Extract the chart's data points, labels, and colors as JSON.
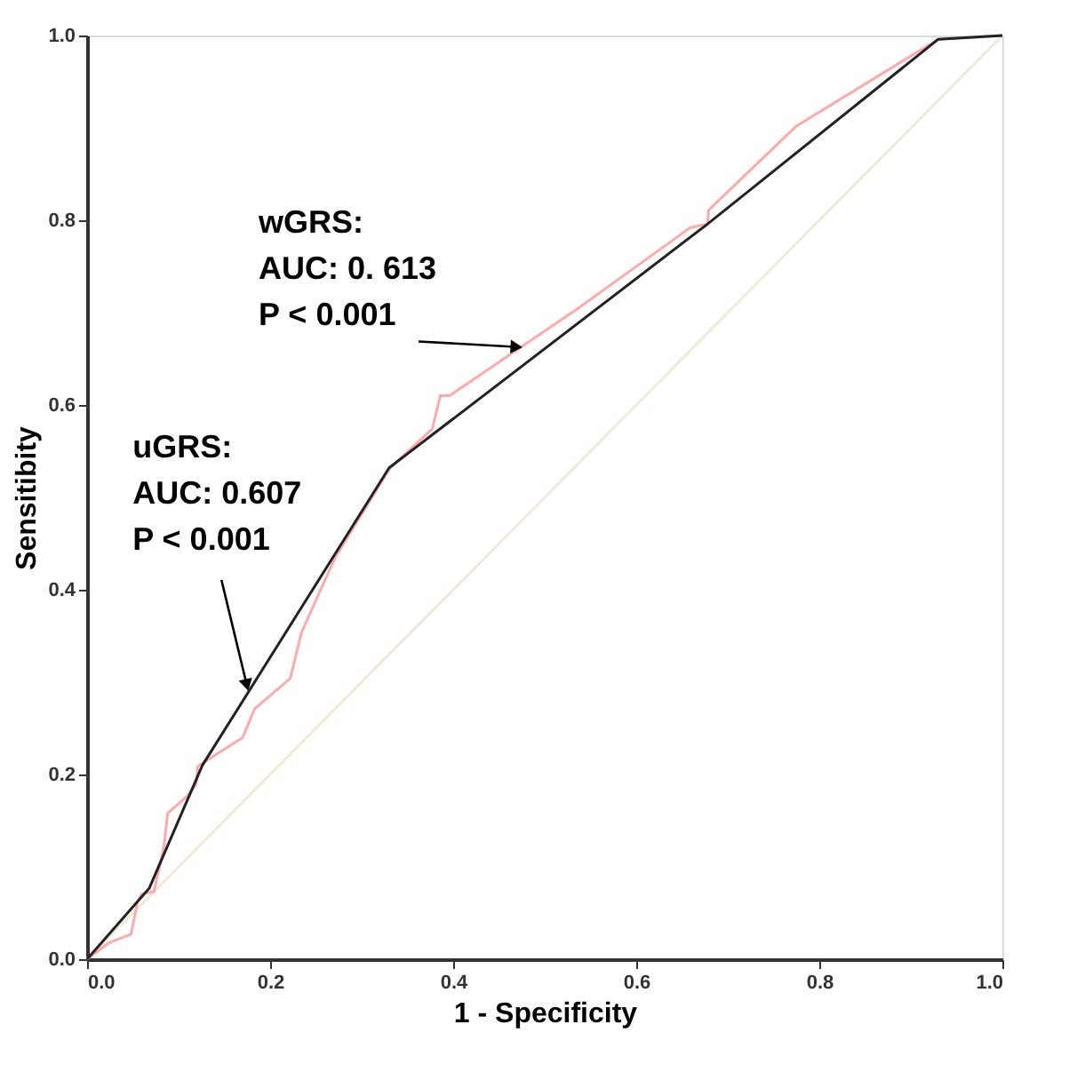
{
  "chart_data": {
    "type": "line",
    "xlabel": "1 - Specificity",
    "ylabel": "Sensitibity",
    "xlim": [
      0,
      1
    ],
    "ylim": [
      0,
      1
    ],
    "xticks": [
      {
        "value": 0,
        "label": "0.0"
      },
      {
        "value": 0.2,
        "label": "0.2"
      },
      {
        "value": 0.4,
        "label": "0.4"
      },
      {
        "value": 0.6,
        "label": "0.6"
      },
      {
        "value": 0.8,
        "label": "0.8"
      },
      {
        "value": 1,
        "label": "1.0"
      }
    ],
    "yticks": [
      {
        "value": 0,
        "label": "0.0"
      },
      {
        "value": 0.2,
        "label": "0.2"
      },
      {
        "value": 0.4,
        "label": "0.4"
      },
      {
        "value": 0.6,
        "label": "0.6"
      },
      {
        "value": 0.8,
        "label": "0.8"
      },
      {
        "value": 1,
        "label": "1.0"
      }
    ],
    "grid": false,
    "marker": "none",
    "line_style": "solid",
    "series": [
      {
        "color": "#f0ead6",
        "x": [
          0,
          1
        ],
        "values": [
          0,
          1
        ]
      },
      {
        "color": "#ffaaaa",
        "x": [
          0,
          0.024,
          0.048,
          0.055,
          0.06,
          0.073,
          0.084,
          0.088,
          0.11,
          0.119,
          0.121,
          0.17,
          0.183,
          0.222,
          0.234,
          0.271,
          0.331,
          0.377,
          0.386,
          0.396,
          0.482,
          0.537,
          0.659,
          0.678,
          0.679,
          0.775,
          0.93,
          1.0
        ],
        "values": [
          0,
          0.018,
          0.027,
          0.062,
          0.071,
          0.073,
          0.122,
          0.158,
          0.177,
          0.189,
          0.209,
          0.24,
          0.271,
          0.304,
          0.353,
          0.435,
          0.532,
          0.574,
          0.61,
          0.61,
          0.668,
          0.705,
          0.792,
          0.796,
          0.811,
          0.902,
          0.996,
          1.0
        ]
      },
      {
        "color": "#222222",
        "x": [
          0,
          0.068,
          0.126,
          0.33,
          0.678,
          0.93,
          1.0
        ],
        "values": [
          0,
          0.077,
          0.21,
          0.532,
          0.796,
          0.996,
          1.0
        ]
      }
    ],
    "annotations": [
      {
        "text": "wGRS:\nAUC: 0. 613\nP < 0.001",
        "x": 0.467,
        "y": 0.663
      },
      {
        "text": "uGRS:\nAUC: 0.607\nP < 0.001",
        "x": 0.174,
        "y": 0.299
      }
    ]
  }
}
